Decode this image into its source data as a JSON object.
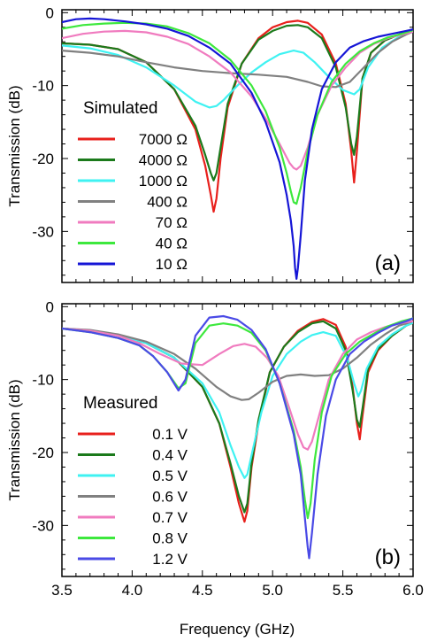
{
  "colors": {
    "red": "#e8201c",
    "darkgreen": "#1b7a1b",
    "cyan": "#3ff2f2",
    "gray": "#808080",
    "pink": "#f07bbf",
    "green": "#3de83d",
    "blue": "#1515d6",
    "blue_measured": "#4a4ae6"
  },
  "chart_data": [
    {
      "type": "line",
      "panel": "(a)",
      "ylabel": "Transmission (dB)",
      "xlim": [
        3.5,
        6.0
      ],
      "ylim": [
        -37,
        0.4
      ],
      "xticks": [
        3.5,
        4.0,
        4.5,
        5.0,
        5.5,
        6.0
      ],
      "yticks": [
        0,
        -10,
        -20,
        -30
      ],
      "legend_title": "Simulated",
      "legend_placement": "left",
      "series": [
        {
          "name": "7000 Ω",
          "color": "red",
          "x": [
            3.5,
            3.7,
            3.9,
            4.1,
            4.3,
            4.45,
            4.52,
            4.56,
            4.58,
            4.6,
            4.63,
            4.68,
            4.78,
            4.9,
            5.0,
            5.1,
            5.18,
            5.25,
            5.35,
            5.45,
            5.52,
            5.56,
            5.58,
            5.6,
            5.64,
            5.7,
            5.8,
            5.9,
            6.0
          ],
          "y": [
            -4.2,
            -4.4,
            -5.0,
            -6.8,
            -10.5,
            -16,
            -21,
            -25,
            -27.3,
            -25.5,
            -20,
            -13,
            -7,
            -3.5,
            -2.0,
            -1.3,
            -1.1,
            -1.4,
            -3.0,
            -7,
            -12.5,
            -19,
            -23.3,
            -19,
            -9,
            -5.5,
            -3.8,
            -3.0,
            -2.3
          ]
        },
        {
          "name": "4000 Ω",
          "color": "darkgreen",
          "x": [
            3.5,
            3.7,
            3.9,
            4.1,
            4.3,
            4.45,
            4.52,
            4.56,
            4.58,
            4.6,
            4.63,
            4.68,
            4.78,
            4.9,
            5.0,
            5.1,
            5.18,
            5.25,
            5.35,
            5.45,
            5.52,
            5.56,
            5.58,
            5.6,
            5.64,
            5.7,
            5.8,
            5.9,
            6.0
          ],
          "y": [
            -4.2,
            -4.4,
            -5.0,
            -6.8,
            -10.5,
            -15.5,
            -19.5,
            -22,
            -23,
            -22,
            -18.5,
            -12.5,
            -7,
            -3.7,
            -2.5,
            -1.8,
            -1.7,
            -2.0,
            -3.5,
            -7.5,
            -13,
            -18,
            -19.5,
            -17,
            -9,
            -5.5,
            -3.8,
            -3.0,
            -2.3
          ]
        },
        {
          "name": "1000 Ω",
          "color": "cyan",
          "x": [
            3.5,
            3.7,
            3.9,
            4.1,
            4.3,
            4.45,
            4.55,
            4.6,
            4.65,
            4.75,
            4.85,
            4.95,
            5.05,
            5.15,
            5.22,
            5.3,
            5.4,
            5.5,
            5.58,
            5.62,
            5.68,
            5.78,
            5.9,
            6.0
          ],
          "y": [
            -4.5,
            -4.9,
            -5.8,
            -7.5,
            -10,
            -12.2,
            -13,
            -12.8,
            -12,
            -10,
            -8.2,
            -6.8,
            -5.7,
            -5.2,
            -5.5,
            -6.8,
            -8.8,
            -10.6,
            -11.2,
            -10.5,
            -7.5,
            -4.8,
            -3.3,
            -2.6
          ]
        },
        {
          "name": "400 Ω",
          "color": "gray",
          "x": [
            3.5,
            3.7,
            3.9,
            4.1,
            4.3,
            4.5,
            4.7,
            4.9,
            5.1,
            5.25,
            5.35,
            5.45,
            5.55,
            5.65,
            5.75,
            5.85,
            5.95,
            6.0
          ],
          "y": [
            -5.2,
            -5.5,
            -6.0,
            -6.8,
            -7.5,
            -8.0,
            -8.3,
            -8.5,
            -8.8,
            -9.5,
            -10.1,
            -10.2,
            -9.5,
            -7.5,
            -5.5,
            -4.0,
            -3.0,
            -2.6
          ]
        },
        {
          "name": "70 Ω",
          "color": "pink",
          "x": [
            3.5,
            3.65,
            3.8,
            3.95,
            4.1,
            4.25,
            4.4,
            4.55,
            4.7,
            4.85,
            4.95,
            5.05,
            5.12,
            5.15,
            5.17,
            5.2,
            5.25,
            5.32,
            5.42,
            5.52,
            5.62,
            5.72,
            5.82,
            5.92,
            6.0
          ],
          "y": [
            -3.5,
            -2.9,
            -2.6,
            -2.5,
            -2.7,
            -3.3,
            -4.3,
            -6.0,
            -8.2,
            -11.5,
            -14.5,
            -18,
            -20.6,
            -21.3,
            -21.5,
            -21,
            -18.5,
            -14,
            -10,
            -7.5,
            -5.5,
            -4.3,
            -3.5,
            -3.0,
            -2.6
          ]
        },
        {
          "name": "40 Ω",
          "color": "green",
          "x": [
            3.5,
            3.65,
            3.8,
            3.95,
            4.1,
            4.25,
            4.4,
            4.55,
            4.7,
            4.85,
            4.95,
            5.05,
            5.1,
            5.13,
            5.15,
            5.17,
            5.2,
            5.25,
            5.32,
            5.42,
            5.52,
            5.62,
            5.72,
            5.82,
            5.92,
            6.0
          ],
          "y": [
            -2.2,
            -1.7,
            -1.5,
            -1.4,
            -1.5,
            -1.9,
            -2.8,
            -4.2,
            -6.5,
            -10,
            -13.5,
            -18.5,
            -22,
            -24.5,
            -26,
            -26.2,
            -24,
            -19,
            -14,
            -9.5,
            -7,
            -5.3,
            -4.2,
            -3.4,
            -2.9,
            -2.4
          ]
        },
        {
          "name": "10 Ω",
          "color": "blue",
          "x": [
            3.5,
            3.6,
            3.7,
            3.8,
            3.95,
            4.1,
            4.25,
            4.4,
            4.55,
            4.7,
            4.85,
            4.95,
            5.05,
            5.1,
            5.13,
            5.15,
            5.16,
            5.17,
            5.18,
            5.2,
            5.23,
            5.28,
            5.35,
            5.45,
            5.55,
            5.65,
            5.75,
            5.85,
            5.95,
            6.0
          ],
          "y": [
            -1.3,
            -0.9,
            -0.8,
            -0.9,
            -1.2,
            -1.6,
            -2.2,
            -3.2,
            -4.8,
            -7,
            -11,
            -15,
            -20.5,
            -25,
            -28.5,
            -32,
            -35,
            -36.5,
            -35,
            -30.5,
            -23,
            -16,
            -10.5,
            -6.8,
            -4.8,
            -3.9,
            -3.3,
            -2.9,
            -2.5,
            -2.3
          ]
        }
      ]
    },
    {
      "type": "line",
      "panel": "(b)",
      "ylabel": "Transmission (dB)",
      "xlabel": "Frequency (GHz)",
      "xlim": [
        3.5,
        6.0
      ],
      "ylim": [
        -37,
        0.4
      ],
      "xticks": [
        3.5,
        4.0,
        4.5,
        5.0,
        5.5,
        6.0
      ],
      "yticks": [
        0,
        -10,
        -20,
        -30
      ],
      "legend_title": "Measured",
      "legend_placement": "left",
      "series": [
        {
          "name": "0.1  V",
          "color": "red",
          "x": [
            3.5,
            3.7,
            3.9,
            4.1,
            4.3,
            4.5,
            4.62,
            4.7,
            4.76,
            4.8,
            4.82,
            4.85,
            4.9,
            4.98,
            5.08,
            5.18,
            5.28,
            5.36,
            5.45,
            5.52,
            5.57,
            5.6,
            5.62,
            5.64,
            5.68,
            5.75,
            5.85,
            5.95,
            6.0
          ],
          "y": [
            -3.0,
            -3.3,
            -3.9,
            -5.0,
            -7.0,
            -11,
            -16,
            -22,
            -27,
            -29.5,
            -28,
            -22,
            -16,
            -9,
            -5.5,
            -3.3,
            -2.1,
            -1.7,
            -2.5,
            -5.5,
            -11,
            -16,
            -18.2,
            -15,
            -9,
            -6,
            -4,
            -2.6,
            -2.2
          ]
        },
        {
          "name": "0.4  V",
          "color": "darkgreen",
          "x": [
            3.5,
            3.7,
            3.9,
            4.1,
            4.3,
            4.5,
            4.62,
            4.7,
            4.76,
            4.8,
            4.82,
            4.85,
            4.9,
            4.98,
            5.08,
            5.18,
            5.28,
            5.36,
            5.45,
            5.52,
            5.57,
            5.6,
            5.62,
            5.64,
            5.68,
            5.75,
            5.85,
            5.95,
            6.0
          ],
          "y": [
            -3.0,
            -3.3,
            -3.9,
            -5.0,
            -7.0,
            -11,
            -16,
            -21.5,
            -26,
            -28.2,
            -27,
            -21.5,
            -15.5,
            -9,
            -5.5,
            -3.5,
            -2.3,
            -2.0,
            -3.0,
            -6,
            -11.5,
            -15.5,
            -16.5,
            -14,
            -8.5,
            -5.8,
            -4,
            -2.6,
            -2.2
          ]
        },
        {
          "name": "0.5  V",
          "color": "cyan",
          "x": [
            3.5,
            3.7,
            3.9,
            4.1,
            4.3,
            4.5,
            4.62,
            4.7,
            4.76,
            4.8,
            4.82,
            4.86,
            4.92,
            5.0,
            5.1,
            5.2,
            5.28,
            5.36,
            5.45,
            5.53,
            5.58,
            5.61,
            5.63,
            5.67,
            5.75,
            5.85,
            5.95,
            6.0
          ],
          "y": [
            -3.0,
            -3.3,
            -3.9,
            -5.0,
            -7.0,
            -10.5,
            -14.5,
            -19,
            -22,
            -23.5,
            -23,
            -19.5,
            -14.5,
            -9.5,
            -6.5,
            -4.8,
            -3.9,
            -3.5,
            -4.0,
            -7,
            -10.5,
            -12.3,
            -11.5,
            -8.5,
            -5.5,
            -3.8,
            -2.6,
            -2.2
          ]
        },
        {
          "name": "0.6  V",
          "color": "gray",
          "x": [
            3.5,
            3.7,
            3.9,
            4.1,
            4.3,
            4.45,
            4.6,
            4.7,
            4.78,
            4.83,
            4.9,
            5.0,
            5.1,
            5.2,
            5.3,
            5.4,
            5.5,
            5.6,
            5.7,
            5.8,
            5.9,
            6.0
          ],
          "y": [
            -3.0,
            -3.2,
            -3.8,
            -4.8,
            -6.5,
            -8.5,
            -11,
            -12.3,
            -12.8,
            -12.7,
            -11.8,
            -10.3,
            -9.5,
            -9.3,
            -9.5,
            -9.4,
            -8.5,
            -7,
            -5.2,
            -3.8,
            -2.6,
            -2.0
          ]
        },
        {
          "name": "0.7  V",
          "color": "pink",
          "x": [
            3.5,
            3.7,
            3.9,
            4.05,
            4.2,
            4.35,
            4.5,
            4.62,
            4.72,
            4.8,
            4.88,
            4.96,
            5.04,
            5.12,
            5.18,
            5.22,
            5.25,
            5.28,
            5.33,
            5.4,
            5.5,
            5.6,
            5.7,
            5.8,
            5.9,
            6.0
          ],
          "y": [
            -3.0,
            -3.3,
            -4.0,
            -5.0,
            -6.5,
            -7.8,
            -8.0,
            -6.5,
            -5.4,
            -5.1,
            -5.5,
            -7,
            -9.5,
            -14,
            -17.5,
            -19.3,
            -19.6,
            -18.5,
            -15,
            -10,
            -6.5,
            -4.5,
            -3.5,
            -2.8,
            -2.3,
            -2.0
          ]
        },
        {
          "name": "0.8  V",
          "color": "green",
          "x": [
            3.5,
            3.7,
            3.9,
            4.05,
            4.15,
            4.25,
            4.33,
            4.38,
            4.45,
            4.55,
            4.65,
            4.75,
            4.85,
            4.95,
            5.05,
            5.15,
            5.2,
            5.23,
            5.25,
            5.27,
            5.3,
            5.35,
            5.42,
            5.52,
            5.62,
            5.72,
            5.82,
            5.92,
            6.0
          ],
          "y": [
            -3.0,
            -3.5,
            -4.3,
            -5.3,
            -6.8,
            -9,
            -11.2,
            -10.5,
            -5,
            -2.6,
            -2.3,
            -2.6,
            -3.6,
            -6,
            -10.5,
            -17,
            -22,
            -26.5,
            -29,
            -27,
            -21,
            -14.5,
            -9.5,
            -6.5,
            -4.8,
            -3.7,
            -2.7,
            -2.0,
            -1.6
          ]
        },
        {
          "name": "1.2  V",
          "color": "blue_measured",
          "x": [
            3.5,
            3.7,
            3.9,
            4.05,
            4.15,
            4.25,
            4.33,
            4.38,
            4.45,
            4.55,
            4.65,
            4.75,
            4.85,
            4.95,
            5.05,
            5.15,
            5.2,
            5.23,
            5.25,
            5.26,
            5.28,
            5.32,
            5.38,
            5.45,
            5.55,
            5.65,
            5.75,
            5.85,
            5.95,
            6.0
          ],
          "y": [
            -3.0,
            -3.5,
            -4.3,
            -5.3,
            -6.8,
            -9,
            -11.5,
            -10,
            -4,
            -1.5,
            -1.3,
            -1.8,
            -3.2,
            -5.8,
            -10.5,
            -17.5,
            -23,
            -29,
            -33,
            -34.5,
            -31,
            -23,
            -15,
            -10,
            -6.5,
            -4.8,
            -3.6,
            -2.6,
            -2.0,
            -1.6
          ]
        }
      ]
    }
  ]
}
